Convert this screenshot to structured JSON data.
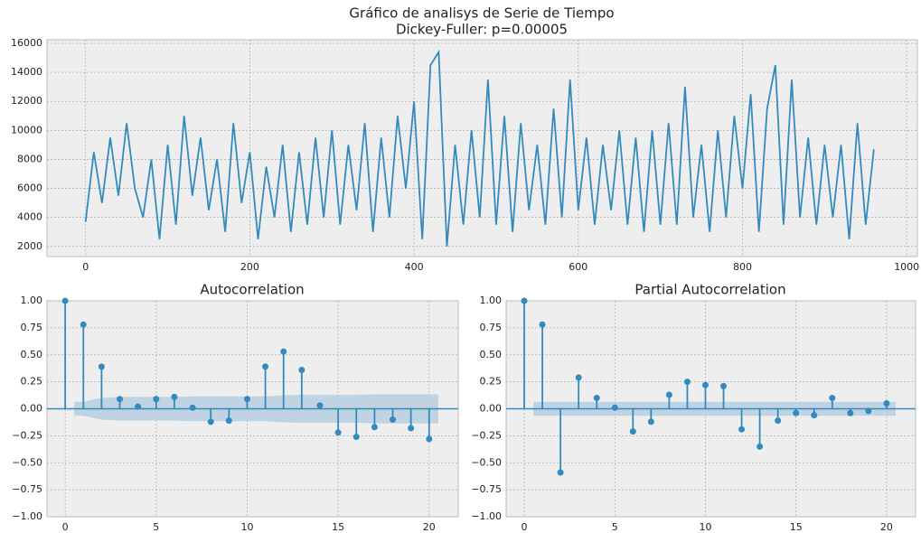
{
  "chart_data": [
    {
      "type": "line",
      "title": "Gráfico de analisys de Serie de Tiempo",
      "subtitle": "Dickey-Fuller: p=0.00005",
      "x": [
        0,
        10,
        20,
        30,
        40,
        50,
        60,
        70,
        80,
        90,
        100,
        110,
        120,
        130,
        140,
        150,
        160,
        170,
        180,
        190,
        200,
        210,
        220,
        230,
        240,
        250,
        260,
        270,
        280,
        290,
        300,
        310,
        320,
        330,
        340,
        350,
        360,
        370,
        380,
        390,
        400,
        410,
        420,
        430,
        440,
        450,
        460,
        470,
        480,
        490,
        500,
        510,
        520,
        530,
        540,
        550,
        560,
        570,
        580,
        590,
        600,
        610,
        620,
        630,
        640,
        650,
        660,
        670,
        680,
        690,
        700,
        710,
        720,
        730,
        740,
        750,
        760,
        770,
        780,
        790,
        800,
        810,
        820,
        830,
        840,
        850,
        860,
        870,
        880,
        890,
        900,
        910,
        920,
        930,
        940,
        950,
        960
      ],
      "series": [
        {
          "color": "#348ABD",
          "values": [
            3700,
            8500,
            5000,
            9500,
            5500,
            10500,
            6000,
            4000,
            8000,
            2500,
            9000,
            3500,
            11000,
            5500,
            9500,
            4500,
            8000,
            3000,
            10500,
            5000,
            8500,
            2500,
            7500,
            4000,
            9000,
            3000,
            8500,
            3500,
            9500,
            4000,
            10000,
            3500,
            9000,
            4500,
            10500,
            3000,
            9500,
            4000,
            11000,
            6000,
            12000,
            2500,
            14500,
            15400,
            2000,
            9000,
            3500,
            10000,
            4000,
            13500,
            3500,
            11000,
            3000,
            10500,
            4500,
            9000,
            3500,
            11500,
            4000,
            13500,
            4500,
            9500,
            3500,
            9000,
            4500,
            10000,
            3500,
            9500,
            3000,
            10000,
            3500,
            10500,
            3500,
            13000,
            4000,
            9000,
            3000,
            10000,
            4000,
            11000,
            6000,
            12500,
            3000,
            11500,
            14500,
            3500,
            13500,
            4000,
            9500,
            3500,
            9000,
            4000,
            9000,
            2500,
            10500,
            3500,
            8700
          ]
        }
      ],
      "xlim": [
        -47,
        1013
      ],
      "xticks": [
        0,
        200,
        400,
        600,
        800,
        1000
      ],
      "ylim": [
        1300,
        16250
      ],
      "yticks": [
        2000,
        4000,
        6000,
        8000,
        10000,
        12000,
        14000,
        16000
      ],
      "grid": true
    },
    {
      "type": "stem",
      "title": "Autocorrelation",
      "x": [
        0,
        1,
        2,
        3,
        4,
        5,
        6,
        7,
        8,
        9,
        10,
        11,
        12,
        13,
        14,
        15,
        16,
        17,
        18,
        19,
        20
      ],
      "series": [
        {
          "color": "#348ABD",
          "values": [
            1.0,
            0.78,
            0.39,
            0.09,
            0.02,
            0.09,
            0.11,
            0.01,
            -0.12,
            -0.11,
            0.09,
            0.39,
            0.53,
            0.36,
            0.03,
            -0.22,
            -0.26,
            -0.17,
            -0.1,
            -0.18,
            -0.28
          ]
        }
      ],
      "confidence_band": {
        "color": "#b6cee0",
        "x": [
          0.5,
          1,
          2,
          3,
          4,
          5,
          6,
          7,
          8,
          9,
          10,
          11,
          12,
          13,
          14,
          15,
          16,
          17,
          18,
          19,
          20,
          20.5
        ],
        "values": [
          0.065,
          0.065,
          0.1,
          0.11,
          0.11,
          0.11,
          0.11,
          0.115,
          0.115,
          0.115,
          0.115,
          0.115,
          0.125,
          0.13,
          0.13,
          0.13,
          0.13,
          0.135,
          0.135,
          0.135,
          0.135,
          0.135
        ]
      },
      "xlim": [
        -1,
        21.6
      ],
      "xticks": [
        0,
        5,
        10,
        15,
        20
      ],
      "ylim": [
        -1,
        1
      ],
      "yticks": [
        {
          "value": -1,
          "label": "−1.00"
        },
        {
          "value": -0.75,
          "label": "−0.75"
        },
        {
          "value": -0.5,
          "label": "−0.50"
        },
        {
          "value": -0.25,
          "label": "−0.25"
        },
        {
          "value": 0,
          "label": "0.00"
        },
        {
          "value": 0.25,
          "label": "0.25"
        },
        {
          "value": 0.5,
          "label": "0.50"
        },
        {
          "value": 0.75,
          "label": "0.75"
        },
        {
          "value": 1,
          "label": "1.00"
        }
      ],
      "grid": true
    },
    {
      "type": "stem",
      "title": "Partial Autocorrelation",
      "x": [
        0,
        1,
        2,
        3,
        4,
        5,
        6,
        7,
        8,
        9,
        10,
        11,
        12,
        13,
        14,
        15,
        16,
        17,
        18,
        19,
        20
      ],
      "series": [
        {
          "color": "#348ABD",
          "values": [
            1.0,
            0.78,
            -0.59,
            0.29,
            0.1,
            0.01,
            -0.21,
            -0.12,
            0.13,
            0.25,
            0.22,
            0.21,
            -0.19,
            -0.35,
            -0.11,
            -0.04,
            -0.06,
            0.1,
            -0.04,
            -0.02,
            0.05
          ]
        }
      ],
      "confidence_band": {
        "color": "#b6cee0",
        "x": [
          0.5,
          20.5
        ],
        "values": [
          0.065,
          0.065
        ]
      },
      "xlim": [
        -1,
        21.6
      ],
      "xticks": [
        0,
        5,
        10,
        15,
        20
      ],
      "ylim": [
        -1,
        1
      ],
      "yticks": [
        {
          "value": -1,
          "label": "−1.00"
        },
        {
          "value": -0.75,
          "label": "−0.75"
        },
        {
          "value": -0.5,
          "label": "−0.50"
        },
        {
          "value": -0.25,
          "label": "−0.25"
        },
        {
          "value": 0,
          "label": "0.00"
        },
        {
          "value": 0.25,
          "label": "0.25"
        },
        {
          "value": 0.5,
          "label": "0.50"
        },
        {
          "value": 0.75,
          "label": "0.75"
        },
        {
          "value": 1,
          "label": "1.00"
        }
      ],
      "grid": true
    }
  ]
}
